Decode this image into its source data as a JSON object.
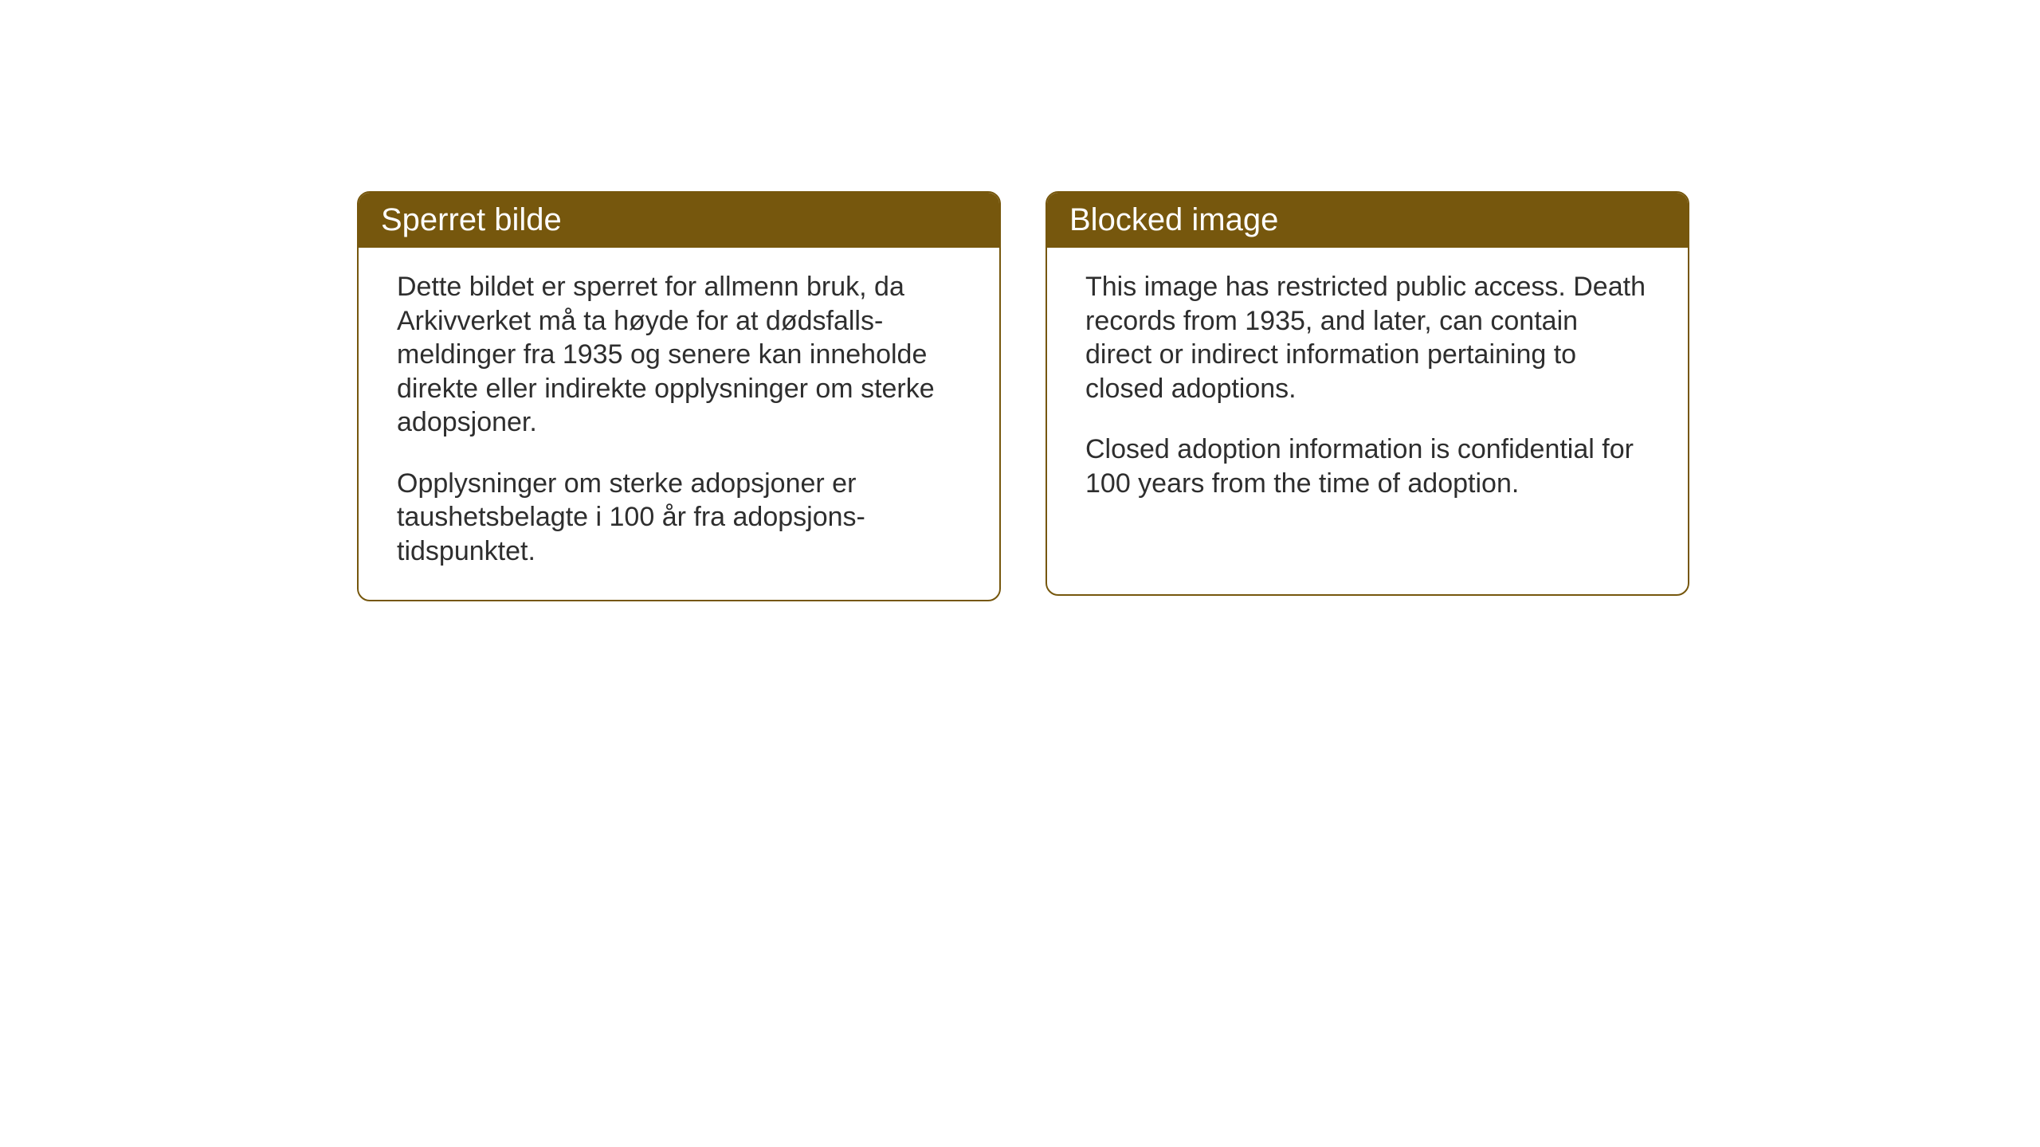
{
  "layout": {
    "background_color": "#ffffff",
    "box_border_color": "#76570d",
    "header_bg_color": "#76570d",
    "header_text_color": "#ffffff",
    "body_text_color": "#2e2e2e",
    "border_radius": 16,
    "header_fontsize": 40,
    "body_fontsize": 34
  },
  "boxes": [
    {
      "lang": "no",
      "title": "Sperret bilde",
      "para1": "Dette bildet er sperret for allmenn bruk, da Arkivverket må ta høyde for at dødsfalls-meldinger fra 1935 og senere kan inneholde direkte eller indirekte opplysninger om sterke adopsjoner.",
      "para2": "Opplysninger om sterke adopsjoner er taushetsbelagte i 100 år fra adopsjons-tidspunktet."
    },
    {
      "lang": "en",
      "title": "Blocked image",
      "para1": "This image has restricted public access. Death records from 1935, and later, can contain direct or indirect information pertaining to closed adoptions.",
      "para2": "Closed adoption information is confidential for 100 years from the time of adoption."
    }
  ]
}
